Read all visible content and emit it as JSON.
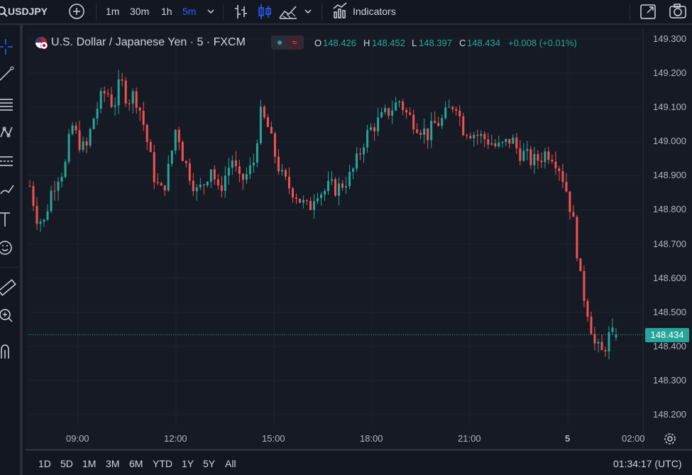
{
  "toolbar": {
    "symbol": "USDJPY",
    "intervals": [
      "1m",
      "30m",
      "1h",
      "5m"
    ],
    "active_interval": "5m",
    "indicators_label": "Indicators"
  },
  "legend": {
    "title": "U.S. Dollar / Japanese Yen · 5 · FXCM",
    "o_label": "O",
    "o_value": "148.426",
    "h_label": "H",
    "h_value": "148.452",
    "l_label": "L",
    "l_value": "148.397",
    "c_label": "C",
    "c_value": "148.434",
    "change": "+0.008 (+0.01%)"
  },
  "price_axis": [
    "149.300",
    "149.200",
    "149.100",
    "149.000",
    "148.900",
    "148.800",
    "148.700",
    "148.600",
    "148.500",
    "148.400",
    "148.300",
    "148.200"
  ],
  "current_price": "148.434",
  "time_axis": [
    "09:00",
    "12:00",
    "15:00",
    "18:00",
    "21:00",
    "5",
    "02:00"
  ],
  "bottom": {
    "ranges": [
      "1D",
      "5D",
      "1M",
      "3M",
      "6M",
      "YTD",
      "1Y",
      "5Y",
      "All"
    ],
    "clock": "01:34:17 (UTC)"
  },
  "colors": {
    "up": "#26a69a",
    "down": "#ef5350",
    "accent": "#2962ff",
    "bg": "#161a25"
  },
  "chart_data": {
    "type": "candlestick",
    "symbol": "USDJPY",
    "interval": "5",
    "ylim": [
      148.18,
      149.31
    ],
    "x_ticks": [
      "09:00",
      "12:00",
      "15:00",
      "18:00",
      "21:00",
      "5",
      "02:00"
    ],
    "close_path": [
      148.87,
      148.78,
      148.76,
      148.85,
      148.9,
      148.92,
      149.05,
      149.0,
      148.97,
      149.06,
      149.12,
      149.15,
      149.1,
      149.18,
      149.12,
      149.14,
      149.08,
      148.98,
      148.88,
      148.85,
      148.93,
      149.05,
      148.95,
      148.9,
      148.85,
      148.88,
      148.93,
      148.85,
      148.9,
      148.95,
      148.88,
      148.9,
      148.93,
      149.08,
      149.05,
      148.97,
      148.9,
      148.87,
      148.85,
      148.82,
      148.8,
      148.86,
      148.85,
      148.87,
      148.86,
      148.88,
      148.9,
      148.95,
      149.01,
      149.04,
      149.06,
      149.08,
      149.1,
      149.12,
      149.08,
      149.06,
      149.04,
      149.02,
      149.05,
      149.06,
      149.09,
      149.12,
      149.04,
      149.03,
      149.02,
      149.01,
      149.0,
      148.98,
      148.99,
      149.01,
      148.97,
      148.96,
      148.94,
      148.95,
      148.97,
      148.96,
      148.92,
      148.85,
      148.75,
      148.58,
      148.5,
      148.4,
      148.38,
      148.43,
      148.434
    ],
    "last": {
      "open": 148.426,
      "high": 148.452,
      "low": 148.397,
      "close": 148.434
    }
  }
}
